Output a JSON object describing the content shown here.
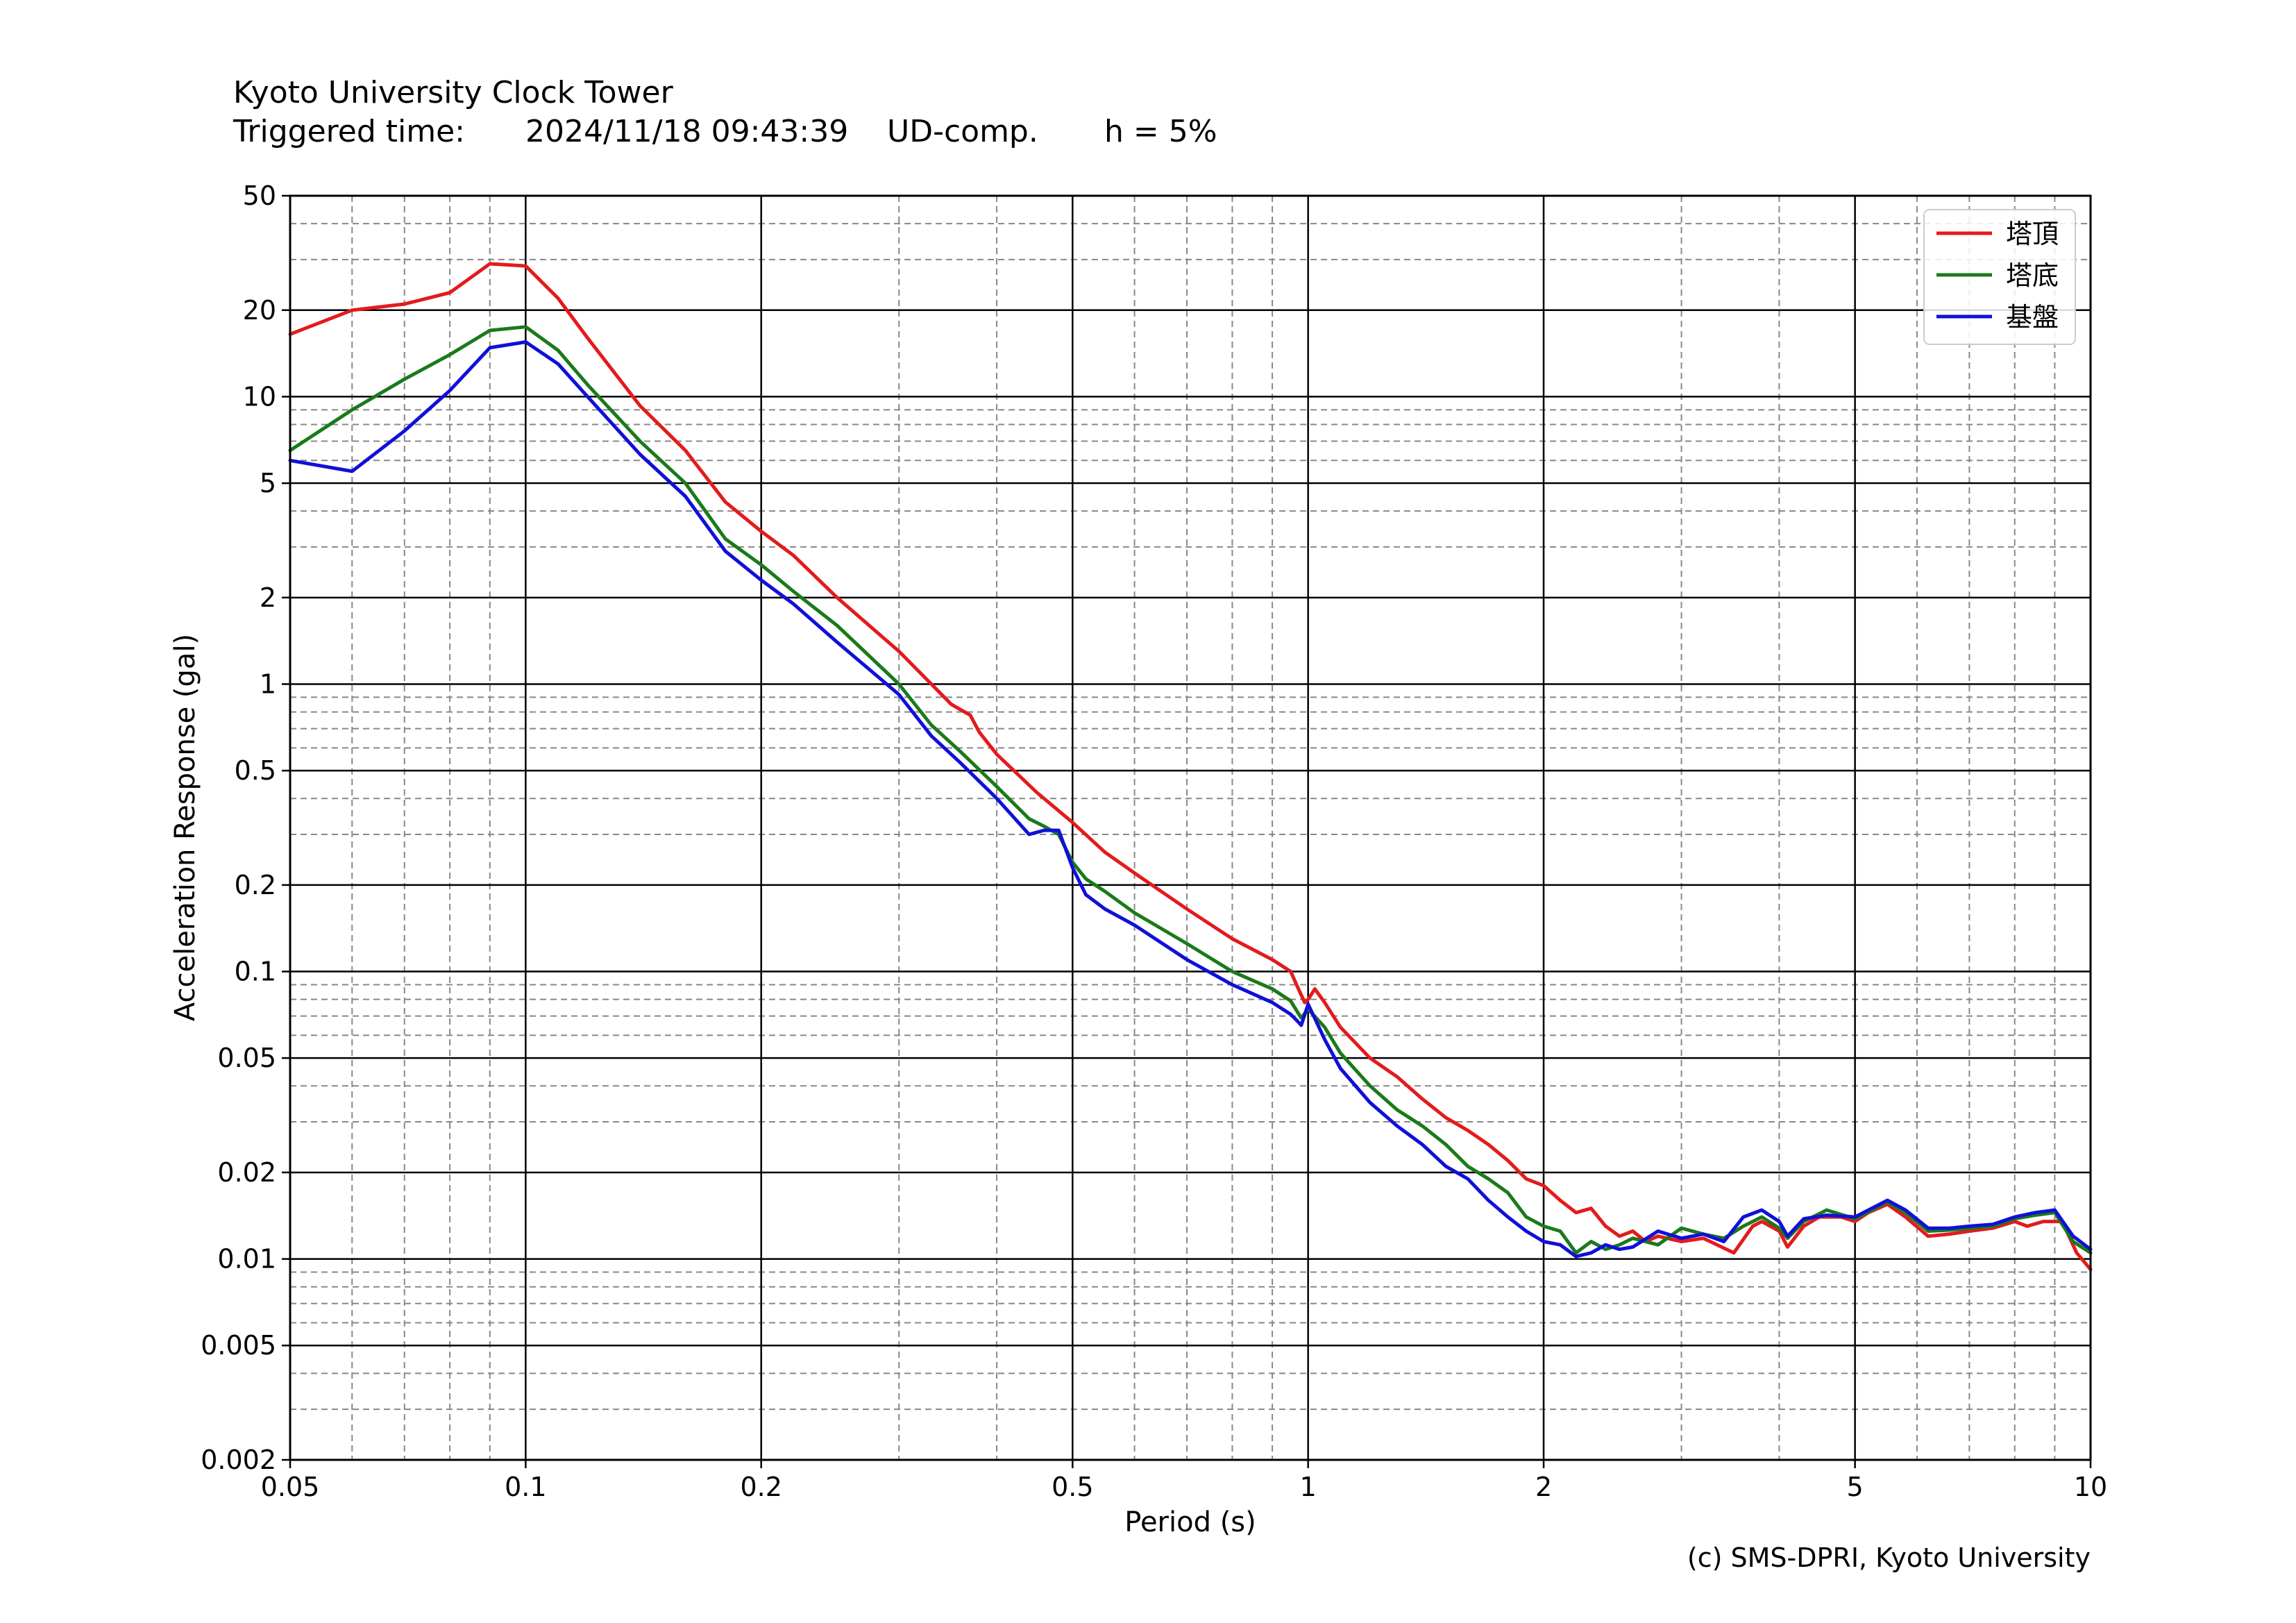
{
  "header": {
    "station": "Kyoto University Clock Tower",
    "trigger_label": "Triggered time:",
    "trigger_time": "2024/11/18 09:43:39",
    "component": "UD-comp.",
    "damping": "h = 5%"
  },
  "credit": "(c) SMS-DPRI, Kyoto University",
  "chart_data": {
    "type": "line",
    "xlabel": "Period (s)",
    "ylabel": "Acceleration Response (gal)",
    "xscale": "log",
    "yscale": "log",
    "xlim": [
      0.05,
      10
    ],
    "ylim": [
      0.002,
      50
    ],
    "xticks": [
      0.05,
      0.1,
      0.2,
      0.5,
      1,
      2,
      5,
      10
    ],
    "xtick_labels": [
      "0.05",
      "0.1",
      "0.2",
      "0.5",
      "1",
      "2",
      "5",
      "10"
    ],
    "yticks": [
      0.002,
      0.005,
      0.01,
      0.02,
      0.05,
      0.1,
      0.2,
      0.5,
      1,
      2,
      5,
      10,
      20,
      50
    ],
    "ytick_labels": [
      "0.002",
      "0.005",
      "0.01",
      "0.02",
      "0.05",
      "0.1",
      "0.2",
      "0.5",
      "1",
      "2",
      "5",
      "10",
      "20",
      "50"
    ],
    "grid": true,
    "legend_position": "top-right",
    "series": [
      {
        "name": "塔頂",
        "color": "#e41a1c",
        "points": [
          [
            0.05,
            16.5
          ],
          [
            0.06,
            20
          ],
          [
            0.07,
            21
          ],
          [
            0.08,
            23
          ],
          [
            0.09,
            29
          ],
          [
            0.1,
            28.5
          ],
          [
            0.11,
            22
          ],
          [
            0.12,
            16
          ],
          [
            0.14,
            9.3
          ],
          [
            0.16,
            6.5
          ],
          [
            0.18,
            4.3
          ],
          [
            0.2,
            3.4
          ],
          [
            0.22,
            2.8
          ],
          [
            0.25,
            2.0
          ],
          [
            0.3,
            1.3
          ],
          [
            0.33,
            1.0
          ],
          [
            0.35,
            0.85
          ],
          [
            0.37,
            0.78
          ],
          [
            0.38,
            0.68
          ],
          [
            0.4,
            0.57
          ],
          [
            0.45,
            0.42
          ],
          [
            0.5,
            0.33
          ],
          [
            0.55,
            0.26
          ],
          [
            0.6,
            0.22
          ],
          [
            0.7,
            0.165
          ],
          [
            0.8,
            0.13
          ],
          [
            0.9,
            0.11
          ],
          [
            0.95,
            0.1
          ],
          [
            0.97,
            0.088
          ],
          [
            0.99,
            0.078
          ],
          [
            1.0,
            0.08
          ],
          [
            1.02,
            0.087
          ],
          [
            1.05,
            0.078
          ],
          [
            1.1,
            0.064
          ],
          [
            1.2,
            0.05
          ],
          [
            1.3,
            0.043
          ],
          [
            1.4,
            0.036
          ],
          [
            1.5,
            0.031
          ],
          [
            1.6,
            0.028
          ],
          [
            1.7,
            0.025
          ],
          [
            1.8,
            0.022
          ],
          [
            1.9,
            0.019
          ],
          [
            2.0,
            0.018
          ],
          [
            2.1,
            0.016
          ],
          [
            2.2,
            0.0145
          ],
          [
            2.3,
            0.015
          ],
          [
            2.4,
            0.013
          ],
          [
            2.5,
            0.012
          ],
          [
            2.6,
            0.0125
          ],
          [
            2.7,
            0.0115
          ],
          [
            2.8,
            0.012
          ],
          [
            3.0,
            0.0115
          ],
          [
            3.2,
            0.0118
          ],
          [
            3.5,
            0.0105
          ],
          [
            3.7,
            0.013
          ],
          [
            3.8,
            0.0135
          ],
          [
            4.0,
            0.0125
          ],
          [
            4.1,
            0.011
          ],
          [
            4.3,
            0.013
          ],
          [
            4.5,
            0.014
          ],
          [
            4.8,
            0.014
          ],
          [
            5.0,
            0.0135
          ],
          [
            5.2,
            0.0145
          ],
          [
            5.5,
            0.0155
          ],
          [
            5.8,
            0.014
          ],
          [
            6.2,
            0.012
          ],
          [
            6.6,
            0.0122
          ],
          [
            7.0,
            0.0125
          ],
          [
            7.5,
            0.0128
          ],
          [
            8.0,
            0.0135
          ],
          [
            8.3,
            0.013
          ],
          [
            8.7,
            0.0135
          ],
          [
            9.2,
            0.0135
          ],
          [
            9.6,
            0.0105
          ],
          [
            10.0,
            0.0092
          ]
        ]
      },
      {
        "name": "塔底",
        "color": "#1a7a1a",
        "points": [
          [
            0.05,
            6.5
          ],
          [
            0.06,
            9.0
          ],
          [
            0.07,
            11.5
          ],
          [
            0.08,
            14
          ],
          [
            0.09,
            17
          ],
          [
            0.1,
            17.5
          ],
          [
            0.11,
            14.5
          ],
          [
            0.12,
            11
          ],
          [
            0.14,
            7.0
          ],
          [
            0.16,
            5.0
          ],
          [
            0.18,
            3.2
          ],
          [
            0.2,
            2.6
          ],
          [
            0.22,
            2.1
          ],
          [
            0.25,
            1.6
          ],
          [
            0.3,
            1.0
          ],
          [
            0.33,
            0.72
          ],
          [
            0.36,
            0.58
          ],
          [
            0.4,
            0.44
          ],
          [
            0.44,
            0.34
          ],
          [
            0.46,
            0.32
          ],
          [
            0.48,
            0.3
          ],
          [
            0.5,
            0.24
          ],
          [
            0.52,
            0.21
          ],
          [
            0.55,
            0.19
          ],
          [
            0.6,
            0.16
          ],
          [
            0.7,
            0.125
          ],
          [
            0.8,
            0.1
          ],
          [
            0.9,
            0.087
          ],
          [
            0.95,
            0.079
          ],
          [
            0.97,
            0.072
          ],
          [
            0.98,
            0.069
          ],
          [
            1.0,
            0.074
          ],
          [
            1.05,
            0.064
          ],
          [
            1.1,
            0.052
          ],
          [
            1.2,
            0.04
          ],
          [
            1.3,
            0.033
          ],
          [
            1.4,
            0.029
          ],
          [
            1.5,
            0.025
          ],
          [
            1.6,
            0.021
          ],
          [
            1.7,
            0.019
          ],
          [
            1.8,
            0.017
          ],
          [
            1.9,
            0.014
          ],
          [
            2.0,
            0.013
          ],
          [
            2.1,
            0.0125
          ],
          [
            2.2,
            0.0105
          ],
          [
            2.3,
            0.0115
          ],
          [
            2.4,
            0.0108
          ],
          [
            2.5,
            0.0112
          ],
          [
            2.6,
            0.0118
          ],
          [
            2.8,
            0.0112
          ],
          [
            3.0,
            0.0128
          ],
          [
            3.2,
            0.0122
          ],
          [
            3.4,
            0.0118
          ],
          [
            3.6,
            0.013
          ],
          [
            3.8,
            0.014
          ],
          [
            4.0,
            0.0128
          ],
          [
            4.1,
            0.0118
          ],
          [
            4.3,
            0.0135
          ],
          [
            4.6,
            0.0148
          ],
          [
            5.0,
            0.0138
          ],
          [
            5.5,
            0.0158
          ],
          [
            5.8,
            0.0145
          ],
          [
            6.2,
            0.0125
          ],
          [
            6.6,
            0.0126
          ],
          [
            7.0,
            0.0128
          ],
          [
            7.5,
            0.013
          ],
          [
            8.0,
            0.0138
          ],
          [
            8.5,
            0.0142
          ],
          [
            9.0,
            0.0145
          ],
          [
            9.5,
            0.0115
          ],
          [
            10.0,
            0.0105
          ]
        ]
      },
      {
        "name": "基盤",
        "color": "#1010d8",
        "points": [
          [
            0.05,
            6.0
          ],
          [
            0.06,
            5.5
          ],
          [
            0.07,
            7.6
          ],
          [
            0.08,
            10.5
          ],
          [
            0.09,
            14.8
          ],
          [
            0.1,
            15.5
          ],
          [
            0.11,
            13
          ],
          [
            0.12,
            10
          ],
          [
            0.14,
            6.3
          ],
          [
            0.16,
            4.5
          ],
          [
            0.18,
            2.9
          ],
          [
            0.2,
            2.3
          ],
          [
            0.22,
            1.9
          ],
          [
            0.25,
            1.4
          ],
          [
            0.3,
            0.92
          ],
          [
            0.33,
            0.66
          ],
          [
            0.36,
            0.53
          ],
          [
            0.4,
            0.4
          ],
          [
            0.44,
            0.3
          ],
          [
            0.46,
            0.31
          ],
          [
            0.48,
            0.31
          ],
          [
            0.5,
            0.23
          ],
          [
            0.52,
            0.185
          ],
          [
            0.55,
            0.165
          ],
          [
            0.6,
            0.145
          ],
          [
            0.7,
            0.11
          ],
          [
            0.8,
            0.09
          ],
          [
            0.9,
            0.078
          ],
          [
            0.95,
            0.071
          ],
          [
            0.97,
            0.067
          ],
          [
            0.98,
            0.065
          ],
          [
            1.0,
            0.077
          ],
          [
            1.05,
            0.058
          ],
          [
            1.1,
            0.046
          ],
          [
            1.2,
            0.035
          ],
          [
            1.3,
            0.029
          ],
          [
            1.4,
            0.025
          ],
          [
            1.5,
            0.021
          ],
          [
            1.6,
            0.019
          ],
          [
            1.7,
            0.016
          ],
          [
            1.8,
            0.014
          ],
          [
            1.9,
            0.0125
          ],
          [
            2.0,
            0.0115
          ],
          [
            2.1,
            0.0112
          ],
          [
            2.2,
            0.0102
          ],
          [
            2.3,
            0.0105
          ],
          [
            2.4,
            0.0112
          ],
          [
            2.5,
            0.0108
          ],
          [
            2.6,
            0.011
          ],
          [
            2.8,
            0.0125
          ],
          [
            3.0,
            0.0118
          ],
          [
            3.2,
            0.0122
          ],
          [
            3.4,
            0.0115
          ],
          [
            3.6,
            0.014
          ],
          [
            3.8,
            0.0148
          ],
          [
            4.0,
            0.0135
          ],
          [
            4.1,
            0.012
          ],
          [
            4.3,
            0.0138
          ],
          [
            4.6,
            0.0142
          ],
          [
            5.0,
            0.014
          ],
          [
            5.5,
            0.016
          ],
          [
            5.8,
            0.0148
          ],
          [
            6.2,
            0.0128
          ],
          [
            6.6,
            0.0128
          ],
          [
            7.0,
            0.013
          ],
          [
            7.5,
            0.0132
          ],
          [
            8.0,
            0.014
          ],
          [
            8.5,
            0.0145
          ],
          [
            9.0,
            0.0148
          ],
          [
            9.5,
            0.012
          ],
          [
            10.0,
            0.0108
          ]
        ]
      }
    ]
  }
}
